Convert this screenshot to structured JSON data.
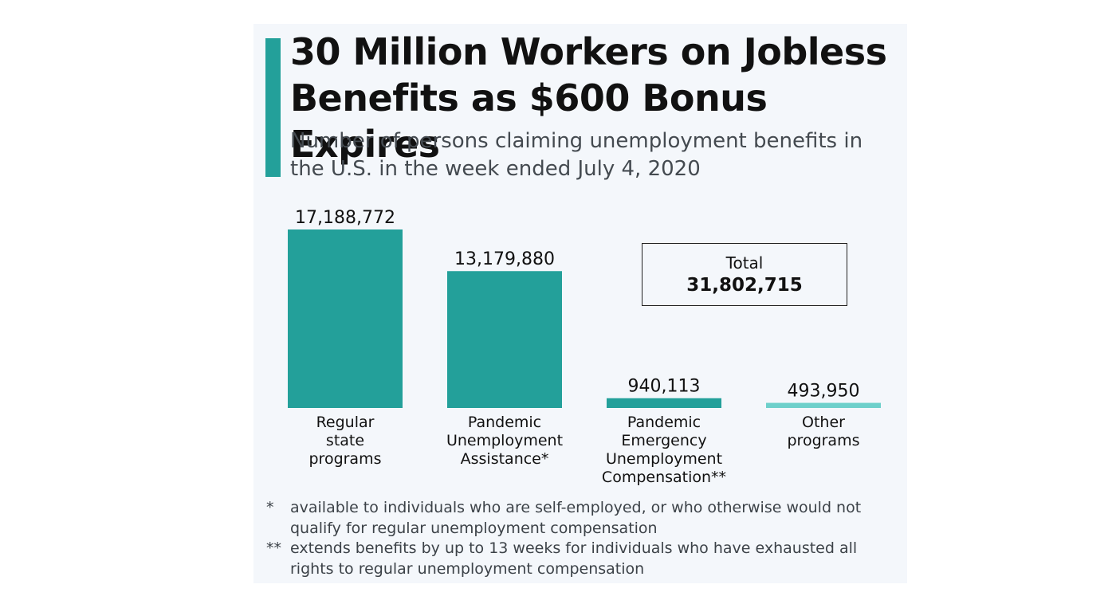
{
  "title": "30 Million Workers on Jobless Benefits as $600 Bonus Expires",
  "subtitle": "Number of persons claiming unemployment benefits in the U.S. in the week ended July 4, 2020",
  "colors": {
    "accent": "#23a09a",
    "bar": "#23a09a",
    "bar_light": "#6ed0cb",
    "card_bg": "#f4f7fb"
  },
  "total": {
    "label": "Total",
    "value": "31,802,715"
  },
  "chart_data": {
    "type": "bar",
    "title": "30 Million Workers on Jobless Benefits as $600 Bonus Expires",
    "subtitle": "Number of persons claiming unemployment benefits in the U.S. in the week ended July 4, 2020",
    "categories": [
      [
        "Regular",
        "state",
        "programs"
      ],
      [
        "Pandemic",
        "Unemployment",
        "Assistance*"
      ],
      [
        "Pandemic",
        "Emergency",
        "Unemployment",
        "Compensation**"
      ],
      [
        "Other",
        "programs"
      ]
    ],
    "values": [
      17188772,
      13179880,
      940113,
      493950
    ],
    "value_labels": [
      "17,188,772",
      "13,179,880",
      "940,113",
      "493,950"
    ],
    "bar_colors": [
      "#23a09a",
      "#23a09a",
      "#23a09a",
      "#6ed0cb"
    ],
    "xlabel": "",
    "ylabel": "",
    "ylim": [
      0,
      17188772
    ],
    "grid": false,
    "legend": "none"
  },
  "footnotes": [
    {
      "mark": "*",
      "text": "available to individuals who are self-employed, or who otherwise would not qualify for regular unemployment compensation"
    },
    {
      "mark": "**",
      "text": "extends benefits by up to 13 weeks for individuals who have exhausted all rights to regular unemployment compensation"
    }
  ]
}
